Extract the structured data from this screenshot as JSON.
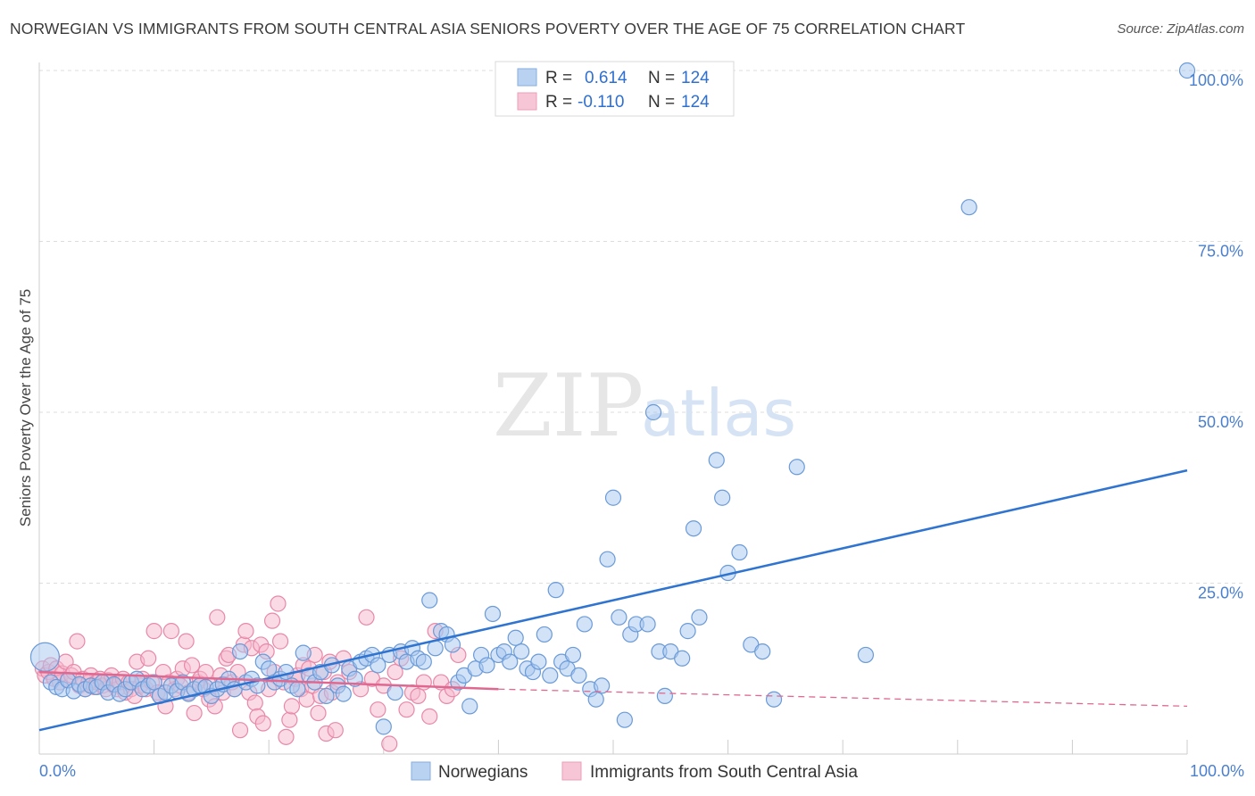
{
  "header": {
    "title": "NORWEGIAN VS IMMIGRANTS FROM SOUTH CENTRAL ASIA SENIORS POVERTY OVER THE AGE OF 75 CORRELATION CHART",
    "source": "Source: ZipAtlas.com"
  },
  "watermark": {
    "zip": "ZIP",
    "atlas": "atlas"
  },
  "legend": {
    "rows": [
      {
        "r_label": "R =",
        "r_value": "0.614",
        "n_label": "N =",
        "n_value": "124"
      },
      {
        "r_label": "R =",
        "r_value": "-0.110",
        "n_label": "N =",
        "n_value": "124"
      }
    ]
  },
  "colors": {
    "blue_fill": "#a8c8f0",
    "blue_stroke": "#6a9ad8",
    "blue_line": "#2f74d0",
    "pink_fill": "#f5b8cc",
    "pink_stroke": "#e888a8",
    "pink_line": "#e06890",
    "tick_text": "#4a7fcf",
    "grid": "#dddddd"
  },
  "chart_data": {
    "type": "scatter",
    "title": "NORWEGIAN VS IMMIGRANTS FROM SOUTH CENTRAL ASIA SENIORS POVERTY OVER THE AGE OF 75 CORRELATION CHART",
    "xlabel": "",
    "ylabel": "Seniors Poverty Over the Age of 75",
    "xlim": [
      0,
      100
    ],
    "ylim": [
      0,
      100
    ],
    "x_tick_labels": [
      "0.0%",
      "100.0%"
    ],
    "y_tick_labels": [
      "25.0%",
      "50.0%",
      "75.0%",
      "100.0%"
    ],
    "y_ticks": [
      25,
      50,
      75,
      100
    ],
    "grid": true,
    "series": [
      {
        "name": "Norwegians",
        "r": 0.614,
        "n": 124,
        "trend": {
          "x": [
            0,
            100
          ],
          "y": [
            3.5,
            41.5
          ],
          "style": "solid"
        },
        "points": [
          [
            0.5,
            14.2
          ],
          [
            1,
            10.5
          ],
          [
            1.5,
            9.8
          ],
          [
            2,
            9.5
          ],
          [
            2.5,
            10.8
          ],
          [
            3,
            9.2
          ],
          [
            3.5,
            10.2
          ],
          [
            4,
            9.5
          ],
          [
            4.5,
            10
          ],
          [
            5,
            9.8
          ],
          [
            5.5,
            10.5
          ],
          [
            6,
            9
          ],
          [
            6.5,
            10.2
          ],
          [
            7,
            8.8
          ],
          [
            7.5,
            9.5
          ],
          [
            8,
            10.5
          ],
          [
            8.5,
            11
          ],
          [
            9,
            9.5
          ],
          [
            9.5,
            10
          ],
          [
            10,
            10.5
          ],
          [
            10.5,
            8.5
          ],
          [
            11,
            9
          ],
          [
            11.5,
            10
          ],
          [
            12,
            9.2
          ],
          [
            12.5,
            10.5
          ],
          [
            13,
            8.8
          ],
          [
            13.5,
            9.5
          ],
          [
            14,
            10
          ],
          [
            14.5,
            9.8
          ],
          [
            15,
            8.5
          ],
          [
            15.5,
            9.5
          ],
          [
            16,
            10.2
          ],
          [
            16.5,
            11
          ],
          [
            17,
            9.5
          ],
          [
            17.5,
            15
          ],
          [
            18,
            10.5
          ],
          [
            18.5,
            11
          ],
          [
            19,
            10
          ],
          [
            19.5,
            13.5
          ],
          [
            20,
            12.5
          ],
          [
            20.5,
            10.5
          ],
          [
            21,
            11
          ],
          [
            21.5,
            12
          ],
          [
            22,
            10
          ],
          [
            22.5,
            9.5
          ],
          [
            23,
            14.8
          ],
          [
            23.5,
            11.5
          ],
          [
            24,
            10.5
          ],
          [
            24.5,
            12
          ],
          [
            25,
            8.5
          ],
          [
            25.5,
            13
          ],
          [
            26,
            10
          ],
          [
            26.5,
            8.8
          ],
          [
            27,
            12.5
          ],
          [
            27.5,
            11
          ],
          [
            28,
            13.5
          ],
          [
            28.5,
            14
          ],
          [
            29,
            14.5
          ],
          [
            29.5,
            13
          ],
          [
            30,
            4
          ],
          [
            30.5,
            14.5
          ],
          [
            31,
            9
          ],
          [
            31.5,
            15
          ],
          [
            32,
            13.5
          ],
          [
            32.5,
            15.5
          ],
          [
            33,
            14
          ],
          [
            33.5,
            13.5
          ],
          [
            34,
            22.5
          ],
          [
            34.5,
            15.5
          ],
          [
            35,
            18
          ],
          [
            35.5,
            17.5
          ],
          [
            36,
            16
          ],
          [
            36.5,
            10.5
          ],
          [
            37,
            11.5
          ],
          [
            37.5,
            7
          ],
          [
            38,
            12.5
          ],
          [
            38.5,
            14.5
          ],
          [
            39,
            13
          ],
          [
            39.5,
            20.5
          ],
          [
            40,
            14.5
          ],
          [
            40.5,
            15
          ],
          [
            41,
            13.5
          ],
          [
            41.5,
            17
          ],
          [
            42,
            15
          ],
          [
            42.5,
            12.5
          ],
          [
            43,
            12
          ],
          [
            43.5,
            13.5
          ],
          [
            44,
            17.5
          ],
          [
            44.5,
            11.5
          ],
          [
            45,
            24
          ],
          [
            45.5,
            13.5
          ],
          [
            46,
            12.5
          ],
          [
            46.5,
            14.5
          ],
          [
            47,
            11.5
          ],
          [
            47.5,
            19
          ],
          [
            48,
            9.5
          ],
          [
            48.5,
            8
          ],
          [
            49,
            10
          ],
          [
            49.5,
            28.5
          ],
          [
            50,
            37.5
          ],
          [
            50.5,
            20
          ],
          [
            51,
            5
          ],
          [
            51.5,
            17.5
          ],
          [
            52,
            19
          ],
          [
            53,
            19
          ],
          [
            53.5,
            50
          ],
          [
            54,
            15
          ],
          [
            54.5,
            8.5
          ],
          [
            55,
            15
          ],
          [
            56,
            14
          ],
          [
            56.5,
            18
          ],
          [
            57,
            33
          ],
          [
            57.5,
            20
          ],
          [
            59,
            43
          ],
          [
            59.5,
            37.5
          ],
          [
            60,
            26.5
          ],
          [
            61,
            29.5
          ],
          [
            62,
            16
          ],
          [
            63,
            15
          ],
          [
            64,
            8
          ],
          [
            66,
            42
          ],
          [
            72,
            14.5
          ],
          [
            81,
            80
          ],
          [
            100,
            100
          ]
        ]
      },
      {
        "name": "Immigrants from South Central Asia",
        "r": -0.11,
        "n": 124,
        "trend": {
          "x": [
            0,
            40,
            100
          ],
          "y": [
            12,
            9.5,
            7
          ],
          "style": "solid-then-dashed"
        },
        "points": [
          [
            0.3,
            12.5
          ],
          [
            0.5,
            11.5
          ],
          [
            0.8,
            12
          ],
          [
            1,
            13
          ],
          [
            1.3,
            11
          ],
          [
            1.5,
            12.5
          ],
          [
            1.8,
            10.5
          ],
          [
            2,
            11.8
          ],
          [
            2.3,
            13.5
          ],
          [
            2.5,
            10.8
          ],
          [
            2.8,
            11.5
          ],
          [
            3,
            12
          ],
          [
            3.3,
            16.5
          ],
          [
            3.5,
            10
          ],
          [
            3.8,
            11
          ],
          [
            4,
            9.5
          ],
          [
            4.3,
            10.5
          ],
          [
            4.5,
            11.5
          ],
          [
            4.8,
            9.8
          ],
          [
            5,
            10.5
          ],
          [
            5.3,
            11
          ],
          [
            5.5,
            10
          ],
          [
            5.8,
            9.5
          ],
          [
            6,
            10.8
          ],
          [
            6.3,
            11.5
          ],
          [
            6.5,
            10
          ],
          [
            6.8,
            9.5
          ],
          [
            7,
            10.5
          ],
          [
            7.3,
            11
          ],
          [
            7.5,
            9
          ],
          [
            7.8,
            10.5
          ],
          [
            8,
            9.5
          ],
          [
            8.3,
            8.5
          ],
          [
            8.5,
            13.5
          ],
          [
            8.8,
            10
          ],
          [
            9,
            11
          ],
          [
            9.3,
            9.5
          ],
          [
            9.5,
            14
          ],
          [
            9.8,
            10.5
          ],
          [
            10,
            18
          ],
          [
            10.3,
            9
          ],
          [
            10.5,
            8.5
          ],
          [
            10.8,
            12
          ],
          [
            11,
            7
          ],
          [
            11.3,
            10.5
          ],
          [
            11.5,
            18
          ],
          [
            11.8,
            9.5
          ],
          [
            12,
            11
          ],
          [
            12.3,
            10
          ],
          [
            12.5,
            12.5
          ],
          [
            12.8,
            16.5
          ],
          [
            13,
            9
          ],
          [
            13.3,
            13
          ],
          [
            13.5,
            6
          ],
          [
            13.8,
            10.5
          ],
          [
            14,
            11
          ],
          [
            14.3,
            9.5
          ],
          [
            14.5,
            12
          ],
          [
            14.8,
            8
          ],
          [
            15,
            10
          ],
          [
            15.3,
            7
          ],
          [
            15.5,
            20
          ],
          [
            15.8,
            11.5
          ],
          [
            16,
            9
          ],
          [
            16.3,
            14
          ],
          [
            16.5,
            14.5
          ],
          [
            16.8,
            10.5
          ],
          [
            17,
            9.5
          ],
          [
            17.3,
            12
          ],
          [
            17.5,
            3.5
          ],
          [
            17.8,
            16
          ],
          [
            18,
            18
          ],
          [
            18.3,
            9
          ],
          [
            18.5,
            15.5
          ],
          [
            18.8,
            7.5
          ],
          [
            19,
            5.5
          ],
          [
            19.3,
            16
          ],
          [
            19.5,
            4.5
          ],
          [
            19.8,
            15
          ],
          [
            20,
            9.5
          ],
          [
            20.3,
            19.5
          ],
          [
            20.5,
            12
          ],
          [
            20.8,
            22
          ],
          [
            21,
            16.5
          ],
          [
            21.3,
            10.5
          ],
          [
            21.5,
            2.5
          ],
          [
            21.8,
            5
          ],
          [
            22,
            7
          ],
          [
            22.3,
            11
          ],
          [
            22.5,
            11.5
          ],
          [
            22.8,
            9.5
          ],
          [
            23,
            13
          ],
          [
            23.3,
            8
          ],
          [
            23.5,
            12.5
          ],
          [
            23.8,
            10
          ],
          [
            24,
            14.5
          ],
          [
            24.3,
            6
          ],
          [
            24.5,
            8.5
          ],
          [
            24.8,
            12
          ],
          [
            25,
            3
          ],
          [
            25.3,
            13.5
          ],
          [
            25.5,
            9
          ],
          [
            25.8,
            3.5
          ],
          [
            26,
            10.5
          ],
          [
            26.5,
            14
          ],
          [
            27,
            12
          ],
          [
            28,
            9.5
          ],
          [
            28.5,
            20
          ],
          [
            29,
            11
          ],
          [
            29.5,
            6.5
          ],
          [
            30,
            10
          ],
          [
            30.5,
            1.5
          ],
          [
            31,
            12
          ],
          [
            31.5,
            14
          ],
          [
            32,
            6.5
          ],
          [
            32.5,
            9
          ],
          [
            33,
            8.5
          ],
          [
            33.5,
            10.5
          ],
          [
            34,
            5.5
          ],
          [
            34.5,
            18
          ],
          [
            35,
            10.5
          ],
          [
            35.5,
            8.5
          ],
          [
            36,
            9.5
          ],
          [
            36.5,
            14.5
          ]
        ]
      }
    ]
  },
  "bottom_legend": {
    "items": [
      {
        "label": "Norwegians"
      },
      {
        "label": "Immigrants from South Central Asia"
      }
    ]
  }
}
